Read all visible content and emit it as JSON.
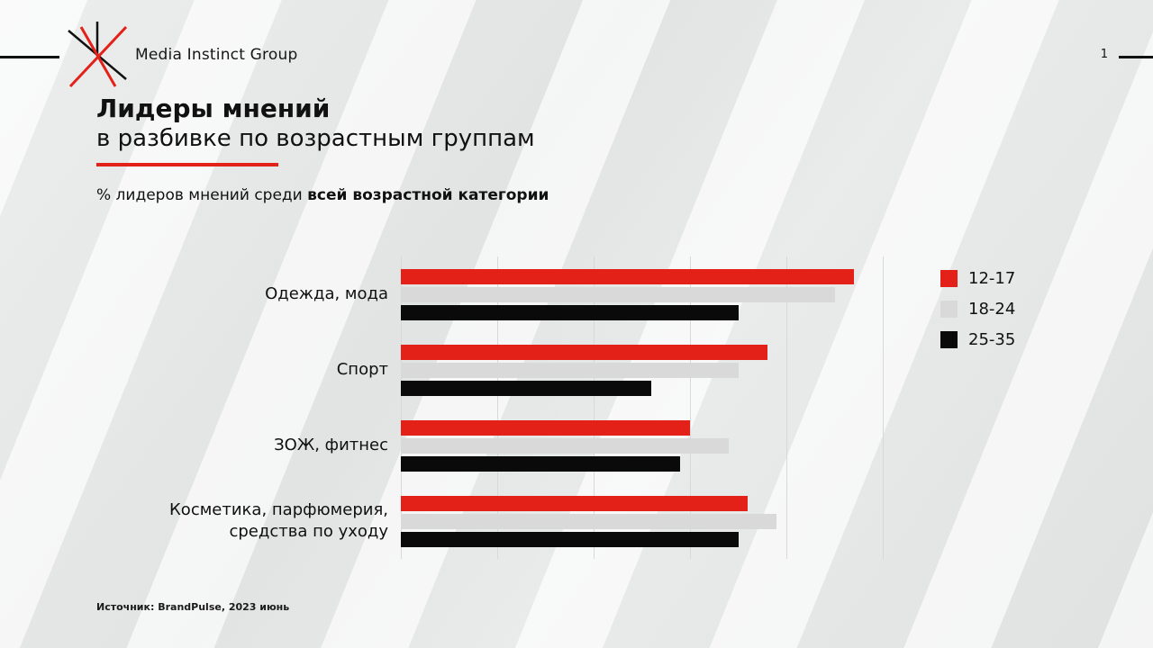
{
  "page": {
    "accent_color": "#e32119",
    "background": "#ecedec"
  },
  "header": {
    "brand": "Media Instinct Group",
    "page_number": "1"
  },
  "title": {
    "line1": "Лидеры мнений",
    "line2": "в разбивке по возрастным группам"
  },
  "subtitle": {
    "prefix": "% лидеров мнений среди ",
    "bold": "всей возрастной категории"
  },
  "source": "Источник: BrandPulse, 2023 июнь",
  "chart_data": {
    "type": "bar",
    "orientation": "horizontal",
    "title": "Лидеры мнений в разбивке по возрастным группам",
    "xlabel": "",
    "ylabel": "",
    "categories": [
      "Одежда, мода",
      "Спорт",
      "ЗОЖ, фитнес",
      "Косметика, парфюмерия, средства по уходу"
    ],
    "series": [
      {
        "name": "12-17",
        "color": "#e32119",
        "values": [
          47,
          38,
          30,
          36
        ]
      },
      {
        "name": "18-24",
        "color": "#d9d9d9",
        "values": [
          45,
          35,
          34,
          39
        ]
      },
      {
        "name": "25-35",
        "color": "#0a0a0a",
        "values": [
          35,
          26,
          29,
          35
        ]
      }
    ],
    "xlim": [
      0,
      50
    ],
    "grid_step": 10,
    "grid": true,
    "legend_position": "right"
  }
}
